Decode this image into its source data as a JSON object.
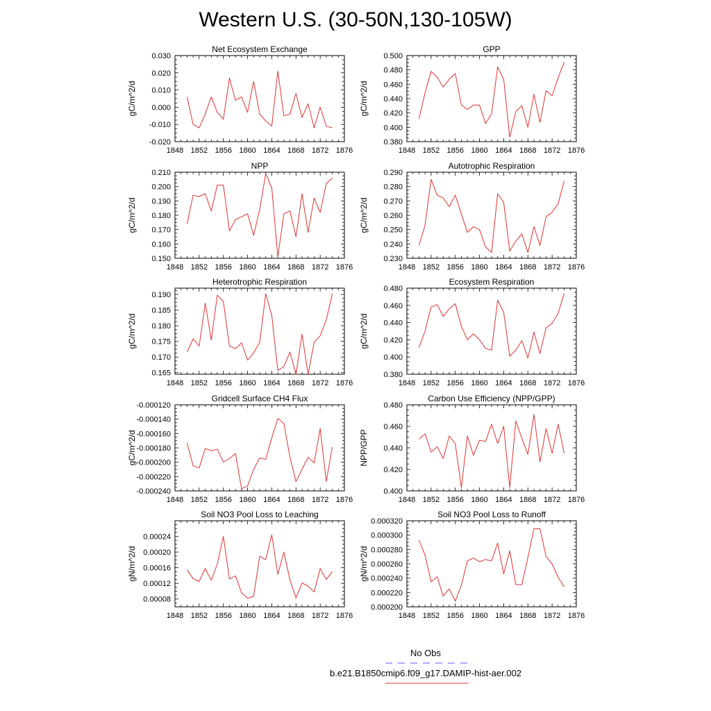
{
  "page": {
    "title": "Western U.S. (30-50N,130-105W)"
  },
  "legend": {
    "items": [
      {
        "label": "No Obs",
        "color": "#5555ff",
        "dash": true
      },
      {
        "label": "b.e21.B1850cmip6.f09_g17.DAMIP-hist-aer.002",
        "color": "#e03030",
        "dash": false
      }
    ]
  },
  "chart_data": [
    {
      "type": "line",
      "title": "Net Ecosystem Exchange",
      "ylabel": "gC/m^2/d",
      "xlim": [
        1848,
        1876
      ],
      "ylim": [
        -0.02,
        0.03
      ],
      "xticks": [
        1848,
        1852,
        1856,
        1860,
        1864,
        1868,
        1872,
        1876
      ],
      "xtick_labels": [
        "1848",
        "1852",
        "1856",
        "1860",
        "1864",
        "1868",
        "1872",
        "1876"
      ],
      "yticks": [
        -0.02,
        -0.01,
        0.0,
        0.01,
        0.02,
        0.03
      ],
      "ytick_labels": [
        "-0.020",
        "-0.010",
        "0.000",
        "0.010",
        "0.020",
        "0.030"
      ],
      "series": [
        {
          "color": "#e03030",
          "x": [
            1850,
            1851,
            1852,
            1853,
            1854,
            1855,
            1856,
            1857,
            1858,
            1859,
            1860,
            1861,
            1862,
            1863,
            1864,
            1865,
            1866,
            1867,
            1868,
            1869,
            1870,
            1871,
            1872,
            1873,
            1874
          ],
          "y": [
            0.006,
            -0.01,
            -0.012,
            -0.004,
            0.006,
            -0.003,
            -0.007,
            0.017,
            0.004,
            0.006,
            -0.003,
            0.015,
            -0.004,
            -0.008,
            -0.011,
            0.021,
            -0.005,
            -0.004,
            0.008,
            -0.006,
            0.002,
            -0.012,
            0.0,
            -0.011,
            -0.012
          ]
        }
      ]
    },
    {
      "type": "line",
      "title": "GPP",
      "ylabel": "gC/m^2/d",
      "xlim": [
        1848,
        1876
      ],
      "ylim": [
        0.38,
        0.5
      ],
      "xticks": [
        1848,
        1852,
        1856,
        1860,
        1864,
        1868,
        1872,
        1876
      ],
      "xtick_labels": [
        "1848",
        "1852",
        "1856",
        "1860",
        "1864",
        "1868",
        "1872",
        "1876"
      ],
      "yticks": [
        0.38,
        0.4,
        0.42,
        0.44,
        0.46,
        0.48,
        0.5
      ],
      "ytick_labels": [
        "0.380",
        "0.400",
        "0.420",
        "0.440",
        "0.460",
        "0.480",
        "0.500"
      ],
      "series": [
        {
          "color": "#e03030",
          "x": [
            1850,
            1851,
            1852,
            1853,
            1854,
            1855,
            1856,
            1857,
            1858,
            1859,
            1860,
            1861,
            1862,
            1863,
            1864,
            1865,
            1866,
            1867,
            1868,
            1869,
            1870,
            1871,
            1872,
            1873,
            1874
          ],
          "y": [
            0.412,
            0.448,
            0.478,
            0.47,
            0.456,
            0.467,
            0.475,
            0.431,
            0.425,
            0.431,
            0.431,
            0.405,
            0.419,
            0.484,
            0.467,
            0.386,
            0.422,
            0.43,
            0.4,
            0.446,
            0.407,
            0.451,
            0.444,
            0.469,
            0.491
          ]
        }
      ]
    },
    {
      "type": "line",
      "title": "NPP",
      "ylabel": "gC/m^2/d",
      "xlim": [
        1848,
        1876
      ],
      "ylim": [
        0.15,
        0.21
      ],
      "xticks": [
        1848,
        1852,
        1856,
        1860,
        1864,
        1868,
        1872,
        1876
      ],
      "xtick_labels": [
        "1848",
        "1852",
        "1856",
        "1860",
        "1864",
        "1868",
        "1872",
        "1876"
      ],
      "yticks": [
        0.15,
        0.16,
        0.17,
        0.18,
        0.19,
        0.2,
        0.21
      ],
      "ytick_labels": [
        "0.150",
        "0.160",
        "0.170",
        "0.180",
        "0.190",
        "0.200",
        "0.210"
      ],
      "series": [
        {
          "color": "#e03030",
          "x": [
            1850,
            1851,
            1852,
            1853,
            1854,
            1855,
            1856,
            1857,
            1858,
            1859,
            1860,
            1861,
            1862,
            1863,
            1864,
            1865,
            1866,
            1867,
            1868,
            1869,
            1870,
            1871,
            1872,
            1873,
            1874
          ],
          "y": [
            0.174,
            0.194,
            0.193,
            0.195,
            0.183,
            0.201,
            0.201,
            0.169,
            0.177,
            0.179,
            0.181,
            0.166,
            0.184,
            0.209,
            0.199,
            0.151,
            0.181,
            0.183,
            0.165,
            0.195,
            0.168,
            0.192,
            0.182,
            0.202,
            0.206
          ]
        }
      ]
    },
    {
      "type": "line",
      "title": "Autotrophic Respiration",
      "ylabel": "gC/m^2/d",
      "xlim": [
        1848,
        1876
      ],
      "ylim": [
        0.23,
        0.29
      ],
      "xticks": [
        1848,
        1852,
        1856,
        1860,
        1864,
        1868,
        1872,
        1876
      ],
      "xtick_labels": [
        "1848",
        "1852",
        "1856",
        "1860",
        "1864",
        "1868",
        "1872",
        "1876"
      ],
      "yticks": [
        0.23,
        0.24,
        0.25,
        0.26,
        0.27,
        0.28,
        0.29
      ],
      "ytick_labels": [
        "0.230",
        "0.240",
        "0.250",
        "0.260",
        "0.270",
        "0.280",
        "0.290"
      ],
      "series": [
        {
          "color": "#e03030",
          "x": [
            1850,
            1851,
            1852,
            1853,
            1854,
            1855,
            1856,
            1857,
            1858,
            1859,
            1860,
            1861,
            1862,
            1863,
            1864,
            1865,
            1866,
            1867,
            1868,
            1869,
            1870,
            1871,
            1872,
            1873,
            1874
          ],
          "y": [
            0.239,
            0.253,
            0.285,
            0.274,
            0.272,
            0.266,
            0.274,
            0.261,
            0.248,
            0.252,
            0.25,
            0.238,
            0.234,
            0.275,
            0.269,
            0.235,
            0.242,
            0.247,
            0.234,
            0.252,
            0.239,
            0.259,
            0.262,
            0.268,
            0.284
          ]
        }
      ]
    },
    {
      "type": "line",
      "title": "Heterotrophic Respiration",
      "ylabel": "gC/m^2/d",
      "xlim": [
        1848,
        1876
      ],
      "ylim": [
        0.1645,
        0.192
      ],
      "xticks": [
        1848,
        1852,
        1856,
        1860,
        1864,
        1868,
        1872,
        1876
      ],
      "xtick_labels": [
        "1848",
        "1852",
        "1856",
        "1860",
        "1864",
        "1868",
        "1872",
        "1876"
      ],
      "yticks": [
        0.165,
        0.17,
        0.175,
        0.18,
        0.185,
        0.19
      ],
      "ytick_labels": [
        "0.165",
        "0.170",
        "0.175",
        "0.180",
        "0.185",
        "0.190"
      ],
      "series": [
        {
          "color": "#e03030",
          "x": [
            1850,
            1851,
            1852,
            1853,
            1854,
            1855,
            1856,
            1857,
            1858,
            1859,
            1860,
            1861,
            1862,
            1863,
            1864,
            1865,
            1866,
            1867,
            1868,
            1869,
            1870,
            1871,
            1872,
            1873,
            1874
          ],
          "y": [
            0.1716,
            0.1758,
            0.1735,
            0.1872,
            0.1754,
            0.1898,
            0.1877,
            0.1735,
            0.1727,
            0.1745,
            0.169,
            0.1713,
            0.1747,
            0.1902,
            0.1833,
            0.1657,
            0.167,
            0.1716,
            0.1645,
            0.1773,
            0.1645,
            0.1747,
            0.1768,
            0.1818,
            0.1902
          ]
        }
      ]
    },
    {
      "type": "line",
      "title": "Ecosystem Respiration",
      "ylabel": "gC/m^2/d",
      "xlim": [
        1848,
        1876
      ],
      "ylim": [
        0.38,
        0.48
      ],
      "xticks": [
        1848,
        1852,
        1856,
        1860,
        1864,
        1868,
        1872,
        1876
      ],
      "xtick_labels": [
        "1848",
        "1852",
        "1856",
        "1860",
        "1864",
        "1868",
        "1872",
        "1876"
      ],
      "yticks": [
        0.38,
        0.4,
        0.42,
        0.44,
        0.46,
        0.48
      ],
      "ytick_labels": [
        "0.380",
        "0.400",
        "0.420",
        "0.440",
        "0.460",
        "0.480"
      ],
      "series": [
        {
          "color": "#e03030",
          "x": [
            1850,
            1851,
            1852,
            1853,
            1854,
            1855,
            1856,
            1857,
            1858,
            1859,
            1860,
            1861,
            1862,
            1863,
            1864,
            1865,
            1866,
            1867,
            1868,
            1869,
            1870,
            1871,
            1872,
            1873,
            1874
          ],
          "y": [
            0.411,
            0.43,
            0.458,
            0.461,
            0.447,
            0.456,
            0.462,
            0.436,
            0.42,
            0.427,
            0.42,
            0.41,
            0.408,
            0.466,
            0.452,
            0.401,
            0.408,
            0.419,
            0.399,
            0.429,
            0.404,
            0.434,
            0.439,
            0.451,
            0.474
          ]
        }
      ]
    },
    {
      "type": "line",
      "title": "Gridcell Surface CH4 Flux",
      "ylabel": "gC/m^2/d",
      "xlim": [
        1848,
        1876
      ],
      "ylim": [
        -0.00024,
        -0.00012
      ],
      "xticks": [
        1848,
        1852,
        1856,
        1860,
        1864,
        1868,
        1872,
        1876
      ],
      "xtick_labels": [
        "1848",
        "1852",
        "1856",
        "1860",
        "1864",
        "1868",
        "1872",
        "1876"
      ],
      "yticks": [
        -0.00024,
        -0.00022,
        -0.0002,
        -0.00018,
        -0.00016,
        -0.00014,
        -0.00012
      ],
      "ytick_labels": [
        "-0.000240",
        "-0.000220",
        "-0.000200",
        "-0.000180",
        "-0.000160",
        "-0.000140",
        "-0.000120"
      ],
      "series": [
        {
          "color": "#e03030",
          "x": [
            1850,
            1851,
            1852,
            1853,
            1854,
            1855,
            1856,
            1857,
            1858,
            1859,
            1860,
            1861,
            1862,
            1863,
            1864,
            1865,
            1866,
            1867,
            1868,
            1869,
            1870,
            1871,
            1872,
            1873,
            1874
          ],
          "y": [
            -0.000173,
            -0.000205,
            -0.000208,
            -0.000181,
            -0.000184,
            -0.000182,
            -0.0002,
            -0.000195,
            -0.000188,
            -0.000237,
            -0.000233,
            -0.00021,
            -0.000194,
            -0.000196,
            -0.000166,
            -0.000139,
            -0.000146,
            -0.000193,
            -0.000227,
            -0.00021,
            -0.000193,
            -0.000201,
            -0.000153,
            -0.000227,
            -0.000179
          ]
        }
      ]
    },
    {
      "type": "line",
      "title": "Carbon Use Efficiency (NPP/GPP)",
      "ylabel": "NPP/GPP",
      "xlim": [
        1848,
        1876
      ],
      "ylim": [
        0.4,
        0.48
      ],
      "xticks": [
        1848,
        1852,
        1856,
        1860,
        1864,
        1868,
        1872,
        1876
      ],
      "xtick_labels": [
        "1848",
        "1852",
        "1856",
        "1860",
        "1864",
        "1868",
        "1872",
        "1876"
      ],
      "yticks": [
        0.4,
        0.42,
        0.44,
        0.46,
        0.48
      ],
      "ytick_labels": [
        "0.400",
        "0.420",
        "0.440",
        "0.460",
        "0.480"
      ],
      "series": [
        {
          "color": "#e03030",
          "x": [
            1850,
            1851,
            1852,
            1853,
            1854,
            1855,
            1856,
            1857,
            1858,
            1859,
            1860,
            1861,
            1862,
            1863,
            1864,
            1865,
            1866,
            1867,
            1868,
            1869,
            1870,
            1871,
            1872,
            1873,
            1874
          ],
          "y": [
            0.448,
            0.453,
            0.436,
            0.441,
            0.43,
            0.451,
            0.444,
            0.403,
            0.451,
            0.433,
            0.447,
            0.446,
            0.462,
            0.444,
            0.46,
            0.403,
            0.465,
            0.449,
            0.434,
            0.471,
            0.427,
            0.458,
            0.435,
            0.462,
            0.435
          ]
        }
      ]
    },
    {
      "type": "line",
      "title": "Soil NO3 Pool Loss to Leaching",
      "ylabel": "gN/m^2/d",
      "xlim": [
        1848,
        1876
      ],
      "ylim": [
        6e-05,
        0.00028
      ],
      "xticks": [
        1848,
        1852,
        1856,
        1860,
        1864,
        1868,
        1872,
        1876
      ],
      "xtick_labels": [
        "1848",
        "1852",
        "1856",
        "1860",
        "1864",
        "1868",
        "1872",
        "1876"
      ],
      "yticks": [
        8e-05,
        0.00012,
        0.00016,
        0.0002,
        0.00024
      ],
      "ytick_labels": [
        "0.00008",
        "0.00012",
        "0.00016",
        "0.00020",
        "0.00024"
      ],
      "series": [
        {
          "color": "#e03030",
          "x": [
            1850,
            1851,
            1852,
            1853,
            1854,
            1855,
            1856,
            1857,
            1858,
            1859,
            1860,
            1861,
            1862,
            1863,
            1864,
            1865,
            1866,
            1867,
            1868,
            1869,
            1870,
            1871,
            1872,
            1873,
            1874
          ],
          "y": [
            0.000155,
            0.000132,
            0.000125,
            0.000158,
            0.000128,
            0.00017,
            0.00024,
            0.000131,
            0.000139,
            9.6e-05,
            8.2e-05,
            8.7e-05,
            0.000189,
            0.000181,
            0.000244,
            0.000143,
            0.0002,
            0.000129,
            8.3e-05,
            0.000121,
            0.000113,
            9.8e-05,
            0.000158,
            0.00013,
            0.00015
          ]
        }
      ]
    },
    {
      "type": "line",
      "title": "Soil NO3 Pool Loss to Runoff",
      "ylabel": "gN/m^2/d",
      "xlim": [
        1848,
        1876
      ],
      "ylim": [
        0.0002,
        0.00032
      ],
      "xticks": [
        1848,
        1852,
        1856,
        1860,
        1864,
        1868,
        1872,
        1876
      ],
      "xtick_labels": [
        "1848",
        "1852",
        "1856",
        "1860",
        "1864",
        "1868",
        "1872",
        "1876"
      ],
      "yticks": [
        0.0002,
        0.00022,
        0.00024,
        0.00026,
        0.00028,
        0.0003,
        0.00032
      ],
      "ytick_labels": [
        "0.000200",
        "0.000220",
        "0.000240",
        "0.000260",
        "0.000280",
        "0.000300",
        "0.000320"
      ],
      "series": [
        {
          "color": "#e03030",
          "x": [
            1850,
            1851,
            1852,
            1853,
            1854,
            1855,
            1856,
            1857,
            1858,
            1859,
            1860,
            1861,
            1862,
            1863,
            1864,
            1865,
            1866,
            1867,
            1868,
            1869,
            1870,
            1871,
            1872,
            1873,
            1874
          ],
          "y": [
            0.000293,
            0.000272,
            0.000235,
            0.000242,
            0.000215,
            0.000225,
            0.000208,
            0.00023,
            0.000264,
            0.000268,
            0.000263,
            0.000266,
            0.000264,
            0.000289,
            0.000246,
            0.000278,
            0.000231,
            0.000231,
            0.000269,
            0.000309,
            0.000309,
            0.00027,
            0.00026,
            0.000241,
            0.000228
          ]
        }
      ]
    }
  ]
}
